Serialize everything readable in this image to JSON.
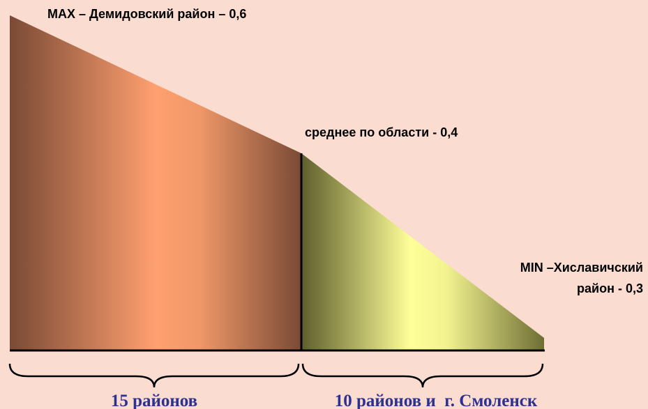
{
  "labels": {
    "max": "MAX – Демидовский район – 0,6",
    "average": "среднее по области - 0,4",
    "min": [
      "MIN –Хиславичский",
      "район - 0,3"
    ]
  },
  "groups": [
    "15 районов",
    "10 районов и  г. Смоленск"
  ]
}
